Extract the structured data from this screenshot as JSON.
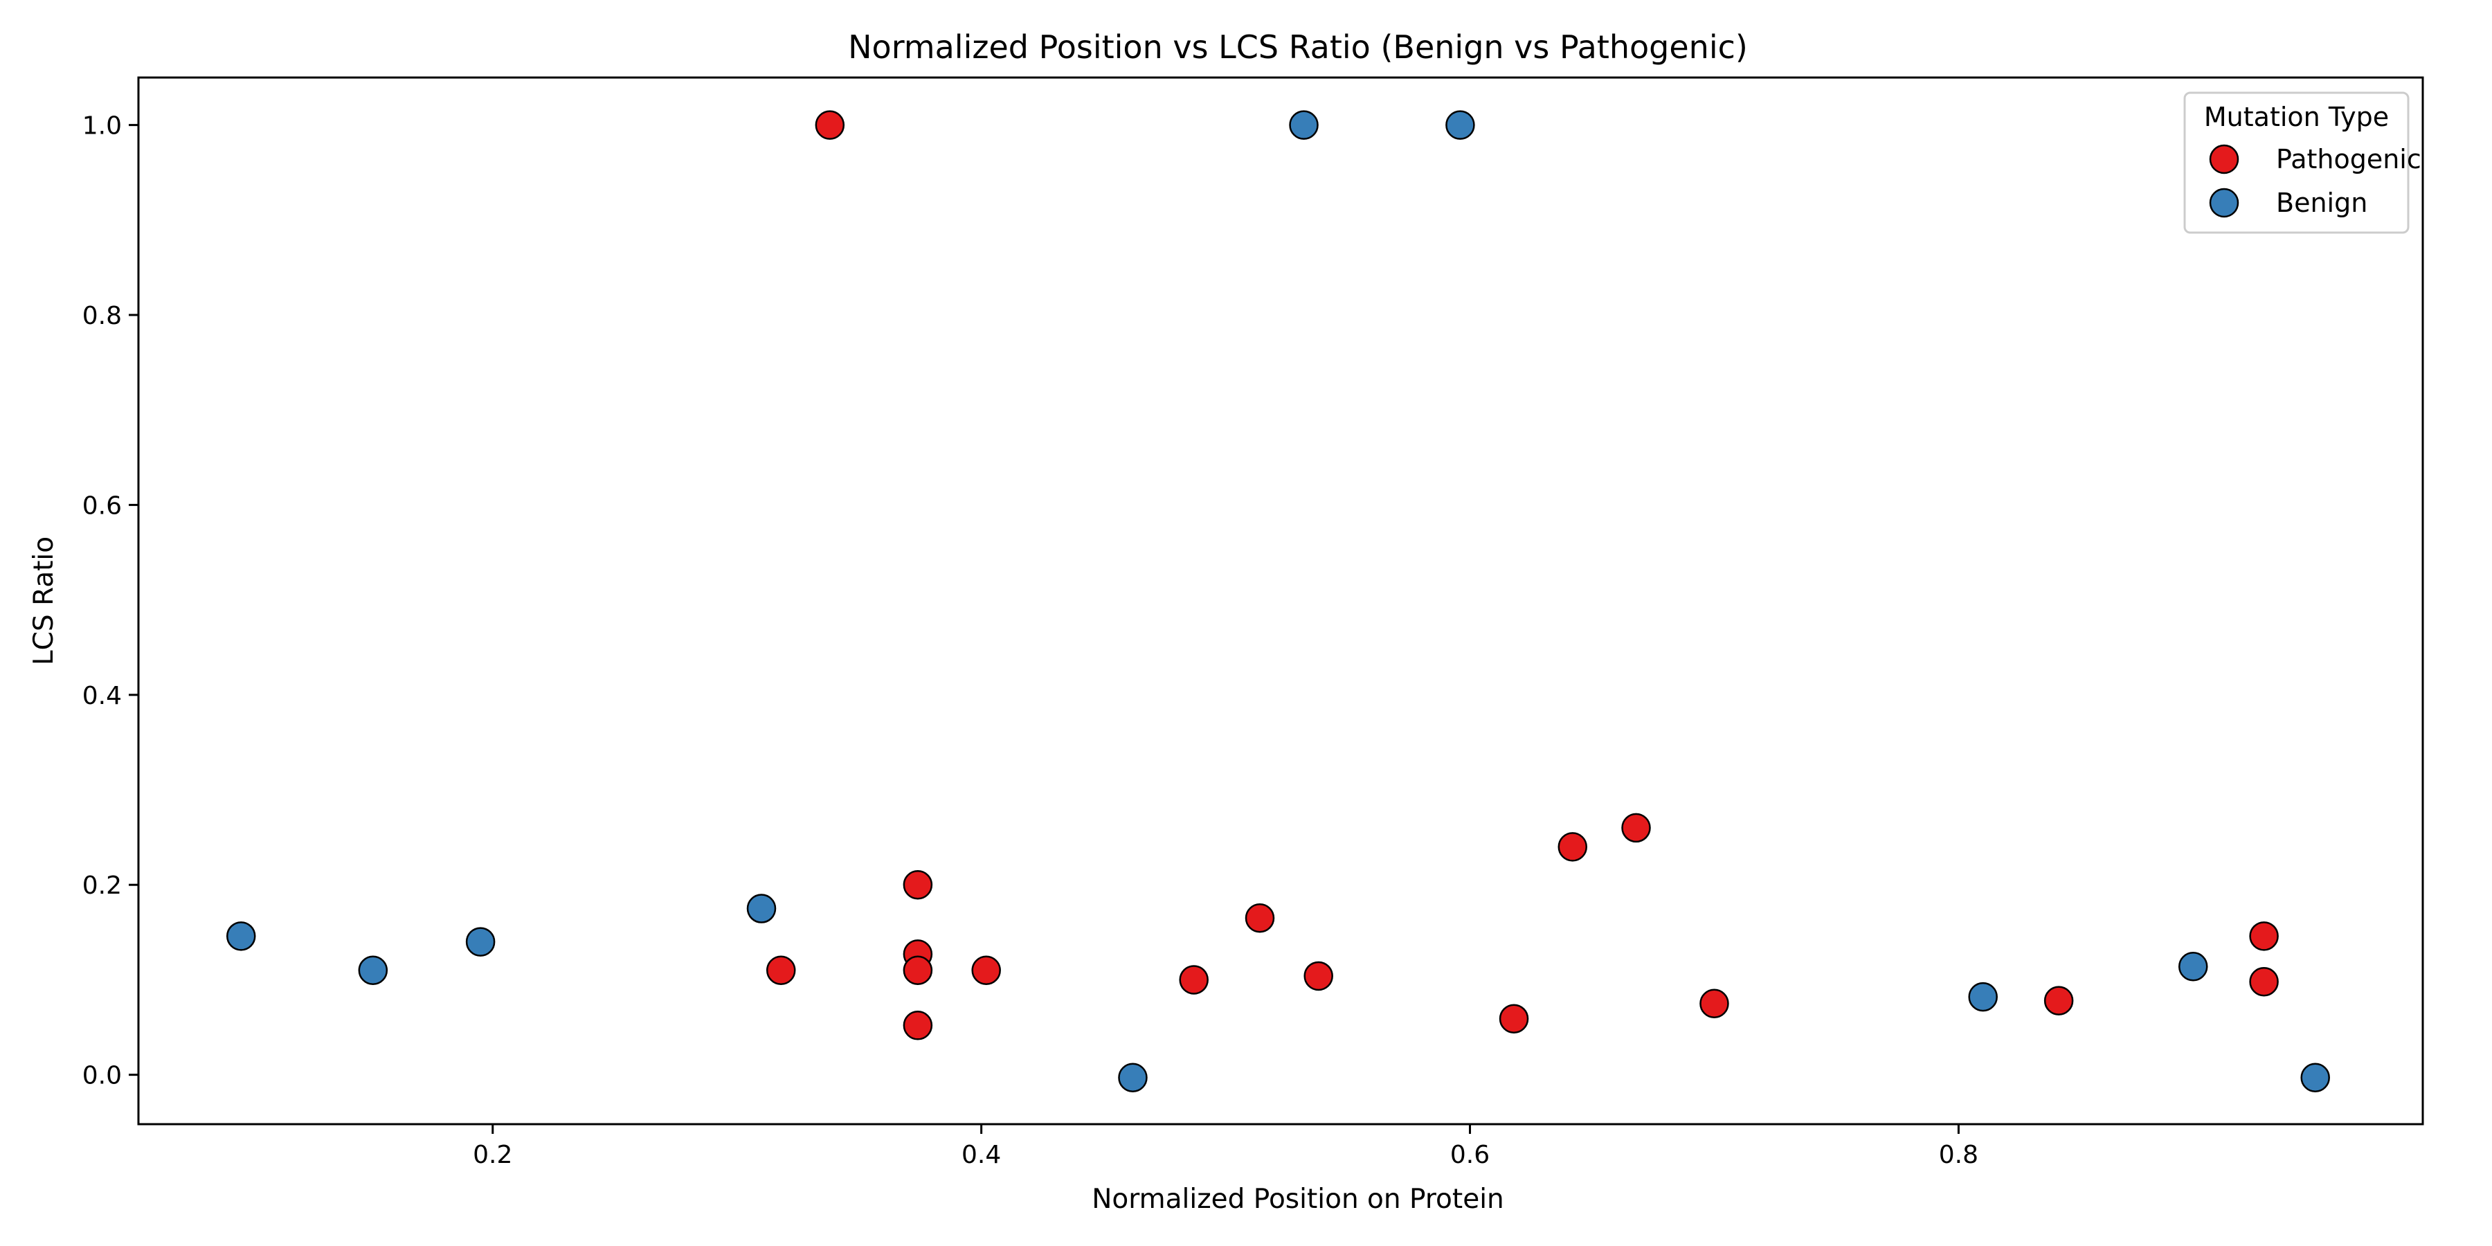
{
  "chart_data": {
    "type": "scatter",
    "title": "Normalized Position vs LCS Ratio (Benign vs Pathogenic)",
    "xlabel": "Normalized Position on Protein",
    "ylabel": "LCS Ratio",
    "xlim": [
      0.055,
      0.99
    ],
    "ylim": [
      -0.052,
      1.05
    ],
    "xticks": [
      0.2,
      0.4,
      0.6,
      0.8
    ],
    "yticks": [
      0.0,
      0.2,
      0.4,
      0.6,
      0.8,
      1.0
    ],
    "xtick_labels": [
      "0.2",
      "0.4",
      "0.6",
      "0.8"
    ],
    "ytick_labels": [
      "0.0",
      "0.2",
      "0.4",
      "0.6",
      "0.8",
      "1.0"
    ],
    "grid": false,
    "legend": {
      "title": "Mutation Type",
      "placement": "top-right"
    },
    "series": [
      {
        "name": "Pathogenic",
        "color": "#e41a1c",
        "points": [
          {
            "x": 0.338,
            "y": 1.0
          },
          {
            "x": 0.318,
            "y": 0.11
          },
          {
            "x": 0.374,
            "y": 0.2
          },
          {
            "x": 0.374,
            "y": 0.127
          },
          {
            "x": 0.374,
            "y": 0.11
          },
          {
            "x": 0.374,
            "y": 0.052
          },
          {
            "x": 0.402,
            "y": 0.11
          },
          {
            "x": 0.487,
            "y": 0.1
          },
          {
            "x": 0.514,
            "y": 0.165
          },
          {
            "x": 0.538,
            "y": 0.104
          },
          {
            "x": 0.618,
            "y": 0.059
          },
          {
            "x": 0.642,
            "y": 0.24
          },
          {
            "x": 0.668,
            "y": 0.26
          },
          {
            "x": 0.7,
            "y": 0.075
          },
          {
            "x": 0.841,
            "y": 0.078
          },
          {
            "x": 0.925,
            "y": 0.146
          },
          {
            "x": 0.925,
            "y": 0.098
          }
        ]
      },
      {
        "name": "Benign",
        "color": "#377eb8",
        "points": [
          {
            "x": 0.097,
            "y": 0.146
          },
          {
            "x": 0.151,
            "y": 0.11
          },
          {
            "x": 0.195,
            "y": 0.14
          },
          {
            "x": 0.31,
            "y": 0.175
          },
          {
            "x": 0.462,
            "y": -0.003
          },
          {
            "x": 0.532,
            "y": 1.0
          },
          {
            "x": 0.596,
            "y": 1.0
          },
          {
            "x": 0.81,
            "y": 0.082
          },
          {
            "x": 0.896,
            "y": 0.114
          },
          {
            "x": 0.946,
            "y": -0.003
          }
        ]
      }
    ]
  }
}
